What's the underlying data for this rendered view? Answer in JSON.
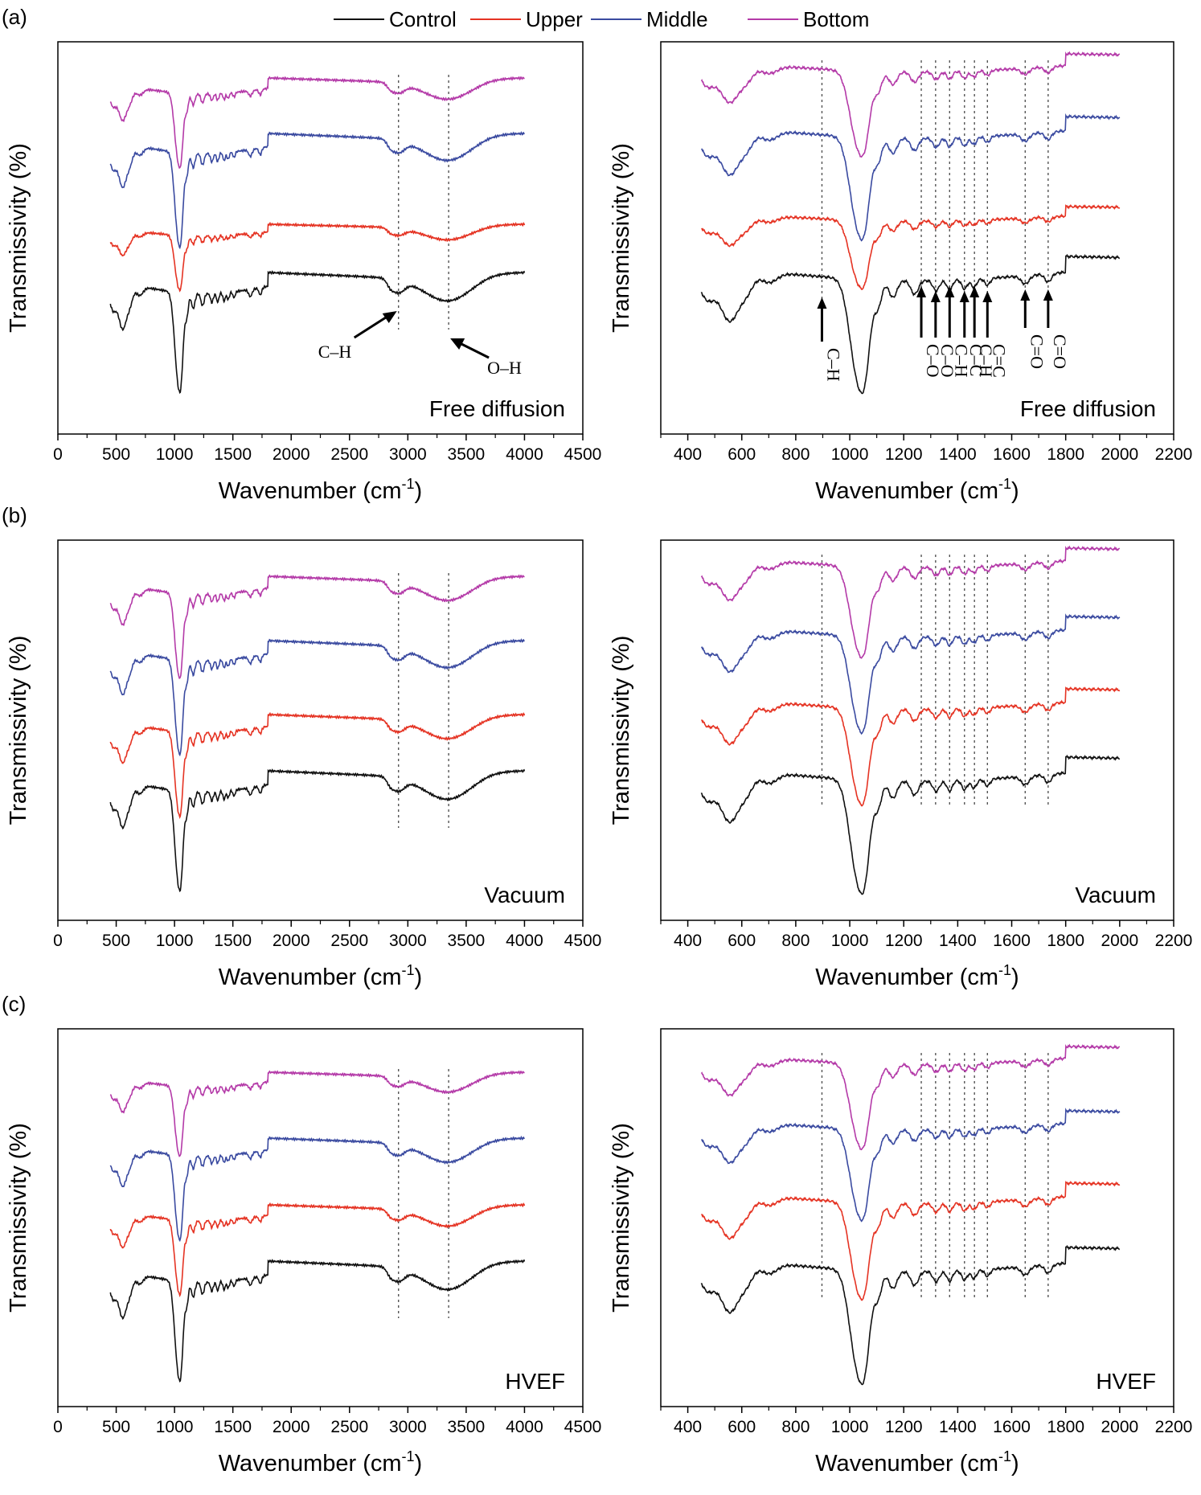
{
  "legend": [
    {
      "name": "Control",
      "color": "#111111"
    },
    {
      "name": "Upper",
      "color": "#e53323"
    },
    {
      "name": "Middle",
      "color": "#3a4aa0"
    },
    {
      "name": "Bottom",
      "color": "#b43aa8"
    }
  ],
  "panel_labels": [
    "(a)",
    "(b)",
    "(c)"
  ],
  "conditions": [
    "Free diffusion",
    "Vacuum",
    "HVEF"
  ],
  "y_label": "Transmissivity (%)",
  "x_label": "Wavenumber (cm",
  "x_label_sup": "-1",
  "x_label_end": ")",
  "full_ticks": [
    "0",
    "500",
    "1000",
    "1500",
    "2000",
    "2500",
    "3000",
    "3500",
    "4000",
    "4500"
  ],
  "zoom_ticks": [
    "400",
    "600",
    "800",
    "1000",
    "1200",
    "1400",
    "1600",
    "1800",
    "2000",
    "2200"
  ],
  "annotations_full": [
    {
      "text": "C–H",
      "target": 2920
    },
    {
      "text": "O–H",
      "target": 3350
    }
  ],
  "annotations_zoom": [
    {
      "text": "C–H",
      "target": 897
    },
    {
      "text": "C–O",
      "target": 1265
    },
    {
      "text": "C–O",
      "target": 1318
    },
    {
      "text": "C–H",
      "target": 1370
    },
    {
      "text": "C–C",
      "target": 1425
    },
    {
      "text": "C–H",
      "target": 1462
    },
    {
      "text": "C=C",
      "target": 1510
    },
    {
      "text": "C=O",
      "target": 1650
    },
    {
      "text": "C=O",
      "target": 1735
    }
  ],
  "chart_data": [
    {
      "type": "line",
      "panel": "(a)",
      "condition": "Free diffusion",
      "range": "full",
      "xlim": [
        0,
        4500
      ],
      "xlabel": "Wavenumber (cm-1)",
      "ylabel": "Transmissivity (%)",
      "x_data_range": [
        450,
        4000
      ],
      "marked_peaks": [
        2920,
        3350
      ],
      "series": [
        {
          "name": "Control",
          "offset": 0.0,
          "peaks_cm1": [
            555,
            1030,
            1105,
            2920,
            3350
          ]
        },
        {
          "name": "Upper",
          "offset": 1.0,
          "peaks_cm1": [
            555,
            1030,
            1105,
            2920,
            3350
          ]
        },
        {
          "name": "Middle",
          "offset": 1.8,
          "peaks_cm1": [
            555,
            1030,
            1105,
            2920,
            3350
          ]
        },
        {
          "name": "Bottom",
          "offset": 2.9,
          "peaks_cm1": [
            555,
            1030,
            1105,
            2920,
            3350
          ]
        }
      ]
    },
    {
      "type": "line",
      "panel": "(a)",
      "condition": "Free diffusion",
      "range": "zoom",
      "xlim": [
        300,
        2200
      ],
      "xlabel": "Wavenumber (cm-1)",
      "ylabel": "Transmissivity (%)",
      "x_data_range": [
        450,
        2000
      ],
      "marked_peaks": [
        897,
        1265,
        1318,
        1370,
        1425,
        1462,
        1510,
        1650,
        1735
      ],
      "series": [
        {
          "name": "Control",
          "offset": 0.0
        },
        {
          "name": "Upper",
          "offset": 1.0
        },
        {
          "name": "Middle",
          "offset": 1.8
        },
        {
          "name": "Bottom",
          "offset": 2.9
        }
      ]
    },
    {
      "type": "line",
      "panel": "(b)",
      "condition": "Vacuum",
      "range": "full",
      "xlim": [
        0,
        4500
      ],
      "xlabel": "Wavenumber (cm-1)",
      "ylabel": "Transmissivity (%)",
      "x_data_range": [
        450,
        4000
      ],
      "marked_peaks": [
        2920,
        3350
      ],
      "series": [
        {
          "name": "Control",
          "offset": 0.0
        },
        {
          "name": "Upper",
          "offset": 1.0
        },
        {
          "name": "Middle",
          "offset": 1.9
        },
        {
          "name": "Bottom",
          "offset": 2.9
        }
      ]
    },
    {
      "type": "line",
      "panel": "(b)",
      "condition": "Vacuum",
      "range": "zoom",
      "xlim": [
        300,
        2200
      ],
      "xlabel": "Wavenumber (cm-1)",
      "ylabel": "Transmissivity (%)",
      "x_data_range": [
        450,
        2000
      ],
      "marked_peaks": [
        897,
        1265,
        1318,
        1370,
        1425,
        1462,
        1510,
        1650,
        1735
      ],
      "series": [
        {
          "name": "Control",
          "offset": 0.0
        },
        {
          "name": "Upper",
          "offset": 1.0
        },
        {
          "name": "Middle",
          "offset": 1.9
        },
        {
          "name": "Bottom",
          "offset": 2.9
        }
      ]
    },
    {
      "type": "line",
      "panel": "(c)",
      "condition": "HVEF",
      "range": "full",
      "xlim": [
        0,
        4500
      ],
      "xlabel": "Wavenumber (cm-1)",
      "ylabel": "Transmissivity (%)",
      "x_data_range": [
        450,
        4000
      ],
      "marked_peaks": [
        2920,
        3350
      ],
      "series": [
        {
          "name": "Control",
          "offset": 0.0
        },
        {
          "name": "Upper",
          "offset": 1.0
        },
        {
          "name": "Middle",
          "offset": 1.9
        },
        {
          "name": "Bottom",
          "offset": 2.8
        }
      ]
    },
    {
      "type": "line",
      "panel": "(c)",
      "condition": "HVEF",
      "range": "zoom",
      "xlim": [
        300,
        2200
      ],
      "xlabel": "Wavenumber (cm-1)",
      "ylabel": "Transmissivity (%)",
      "x_data_range": [
        450,
        2000
      ],
      "marked_peaks": [
        897,
        1265,
        1318,
        1370,
        1425,
        1462,
        1510,
        1650,
        1735
      ],
      "series": [
        {
          "name": "Control",
          "offset": 0.0
        },
        {
          "name": "Upper",
          "offset": 1.0
        },
        {
          "name": "Middle",
          "offset": 1.9
        },
        {
          "name": "Bottom",
          "offset": 2.8
        }
      ]
    }
  ]
}
